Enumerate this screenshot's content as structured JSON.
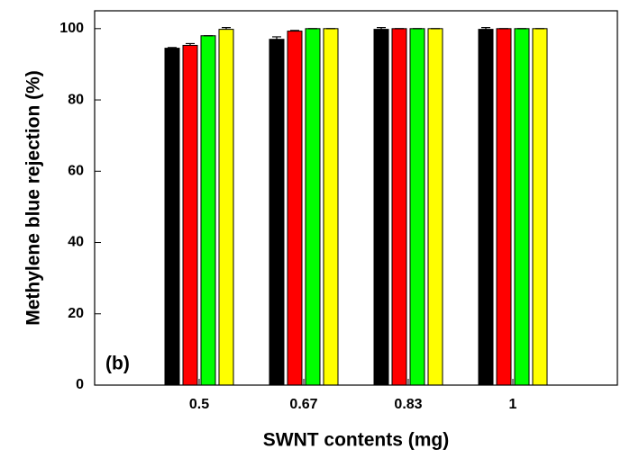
{
  "chart_data": {
    "type": "bar",
    "x_label": "SWNT contents (mg)",
    "y_label": "Methylene blue rejection (%)",
    "annotation": "(b)",
    "categories": [
      "0.5",
      "0.67",
      "0.83",
      "1"
    ],
    "series": [
      {
        "color": "#000000",
        "values": [
          94.5,
          97,
          99.8,
          99.8
        ],
        "errors": [
          0.2,
          0.7,
          0.5,
          0.5
        ]
      },
      {
        "color": "#ff0000",
        "values": [
          95.3,
          99.3,
          100,
          100
        ],
        "errors": [
          0.5,
          0.2,
          0,
          0
        ]
      },
      {
        "color": "#00ff00",
        "values": [
          98,
          100,
          100,
          100
        ],
        "errors": [
          0,
          0,
          0,
          0
        ]
      },
      {
        "color": "#ffff00",
        "values": [
          99.8,
          100,
          100,
          100
        ],
        "errors": [
          0.5,
          0,
          0,
          0
        ]
      }
    ],
    "ylim": [
      0,
      105
    ],
    "yticks": [
      0,
      20,
      40,
      60,
      80,
      100
    ],
    "grid": false
  }
}
